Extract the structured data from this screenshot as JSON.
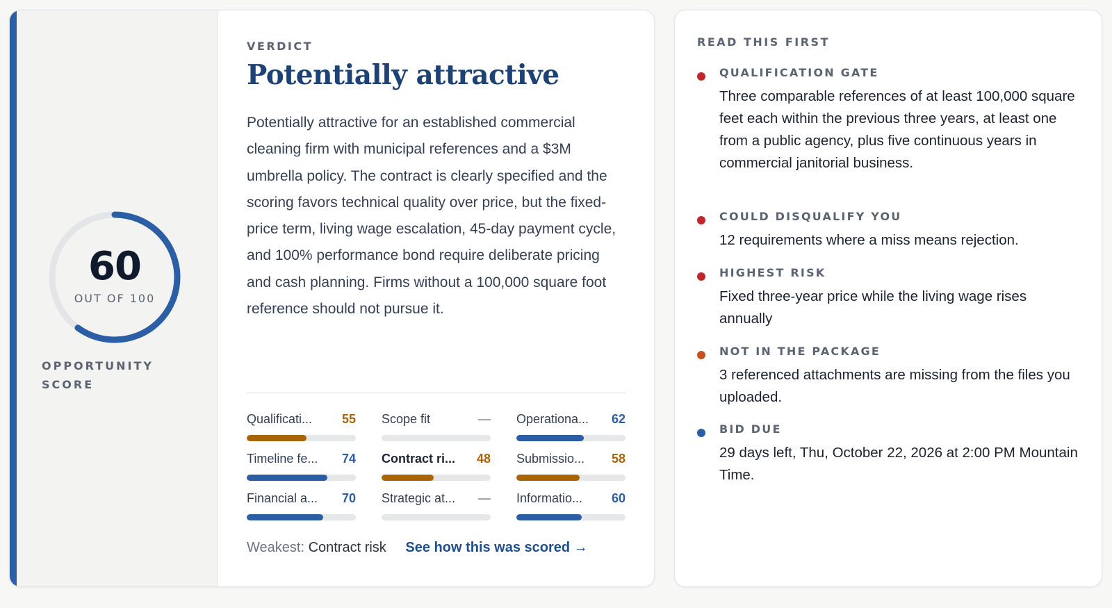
{
  "verdict_card": {
    "score": "60",
    "score_out_of": "OUT OF 100",
    "score_label": "OPPORTUNITY SCORE",
    "score_value": 60,
    "score_max": 100,
    "eyebrow": "VERDICT",
    "title": "Potentially attractive",
    "body": "Potentially attractive for an established commercial cleaning firm with municipal references and a $3M umbrella policy. The contract is clearly specified and the scoring favors technical quality over price, but the fixed-price term, living wage escalation, 45-day payment cycle, and 100% performance bond require deliberate pricing and cash planning. Firms without a 100,000 square foot reference should not pursue it.",
    "metrics": [
      {
        "name": "Qualificati...",
        "value": "55",
        "level": 55,
        "color": "#a86508",
        "bold": false
      },
      {
        "name": "Scope fit",
        "value": "—",
        "level": 0,
        "color": "#9aa0a8",
        "bold": false
      },
      {
        "name": "Operationa...",
        "value": "62",
        "level": 62,
        "color": "#2b5ea4",
        "bold": false
      },
      {
        "name": "Timeline fe...",
        "value": "74",
        "level": 74,
        "color": "#2b5ea4",
        "bold": false
      },
      {
        "name": "Contract ri...",
        "value": "48",
        "level": 48,
        "color": "#a86508",
        "bold": true
      },
      {
        "name": "Submissio...",
        "value": "58",
        "level": 58,
        "color": "#a86508",
        "bold": false
      },
      {
        "name": "Financial a...",
        "value": "70",
        "level": 70,
        "color": "#2b5ea4",
        "bold": false
      },
      {
        "name": "Strategic at...",
        "value": "—",
        "level": 0,
        "color": "#9aa0a8",
        "bold": false
      },
      {
        "name": "Informatio...",
        "value": "60",
        "level": 60,
        "color": "#2b5ea4",
        "bold": false
      }
    ],
    "weakest_label": "Weakest:",
    "weakest_value": "Contract risk",
    "scored_link": "See how this was scored →"
  },
  "read_first": {
    "eyebrow": "READ THIS FIRST",
    "items": [
      {
        "label": "QUALIFICATION GATE",
        "text": "Three comparable references of at least 100,000 square feet each within the previous three years, at least one from a public agency, plus five continuous years in commercial janitorial business.",
        "dot_color": "#c0262a"
      },
      {
        "label": "COULD DISQUALIFY YOU",
        "text": "12 requirements where a miss means rejection.",
        "dot_color": "#c0262a"
      },
      {
        "label": "HIGHEST RISK",
        "text": "Fixed three-year price while the living wage rises annually",
        "dot_color": "#c0262a"
      },
      {
        "label": "NOT IN THE PACKAGE",
        "text": "3 referenced attachments are missing from the files you uploaded.",
        "dot_color": "#c8501e"
      },
      {
        "label": "BID DUE",
        "text": "29 days left, Thu, October 22, 2026 at 2:00 PM Mountain Time.",
        "dot_color": "#2b5ea4"
      }
    ]
  },
  "colors": {
    "accent_blue": "#2b5ea4",
    "warning_amber": "#a86508",
    "danger_red": "#c0262a",
    "title_navy": "#1d4275"
  }
}
